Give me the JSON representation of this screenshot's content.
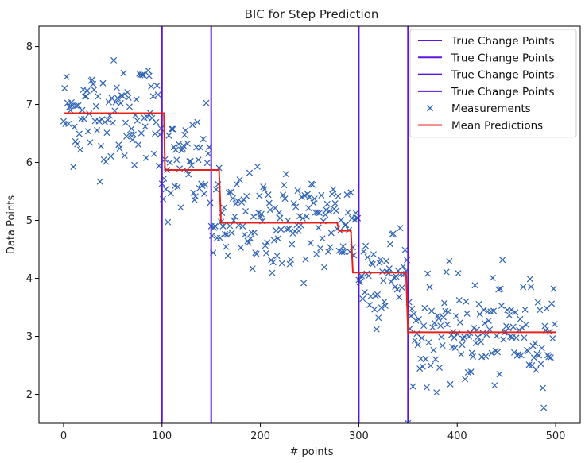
{
  "chart_data": {
    "type": "scatter",
    "title": "BIC for Step Prediction",
    "xlabel": "# points",
    "ylabel": "Data Points",
    "xlim": [
      -25,
      525
    ],
    "ylim": [
      1.5,
      8.35
    ],
    "xticks": [
      0,
      100,
      200,
      300,
      400,
      500
    ],
    "yticks": [
      2,
      3,
      4,
      5,
      6,
      7,
      8
    ],
    "grid": false,
    "legend_position": "top-right",
    "colors": {
      "change_points": "#5a16e0",
      "measurements": "#2e62b5",
      "mean_predictions": "#e8201c"
    },
    "series": [
      {
        "name": "True Change Points",
        "kind": "vline",
        "x": 100
      },
      {
        "name": "True Change Points",
        "kind": "vline",
        "x": 150
      },
      {
        "name": "True Change Points",
        "kind": "vline",
        "x": 300
      },
      {
        "name": "True Change Points",
        "kind": "vline",
        "x": 350
      },
      {
        "name": "Measurements",
        "kind": "scatter",
        "marker": "x",
        "segments": [
          {
            "x_range": [
              0,
              99
            ],
            "mean": 6.85
          },
          {
            "x_range": [
              100,
              149
            ],
            "mean": 5.9
          },
          {
            "x_range": [
              150,
              299
            ],
            "mean": 4.95
          },
          {
            "x_range": [
              300,
              349
            ],
            "mean": 4.1
          },
          {
            "x_range": [
              350,
              499
            ],
            "mean": 3.07
          }
        ],
        "spread": 0.45,
        "count": 500
      },
      {
        "name": "Mean Predictions",
        "kind": "step",
        "x": [
          0,
          102,
          103,
          158,
          160,
          278,
          280,
          292,
          294,
          348,
          350,
          500
        ],
        "y": [
          6.85,
          6.85,
          5.87,
          5.87,
          4.96,
          4.96,
          4.82,
          4.82,
          4.1,
          4.1,
          3.07,
          3.07
        ]
      }
    ]
  },
  "legend": {
    "items": [
      {
        "label": "True Change Points",
        "symbol": "line",
        "color": "#5a16e0"
      },
      {
        "label": "True Change Points",
        "symbol": "line",
        "color": "#5a16e0"
      },
      {
        "label": "True Change Points",
        "symbol": "line",
        "color": "#5a16e0"
      },
      {
        "label": "True Change Points",
        "symbol": "line",
        "color": "#5a16e0"
      },
      {
        "label": "Measurements",
        "symbol": "x",
        "color": "#2e62b5"
      },
      {
        "label": "Mean Predictions",
        "symbol": "line",
        "color": "#e8201c"
      }
    ]
  }
}
